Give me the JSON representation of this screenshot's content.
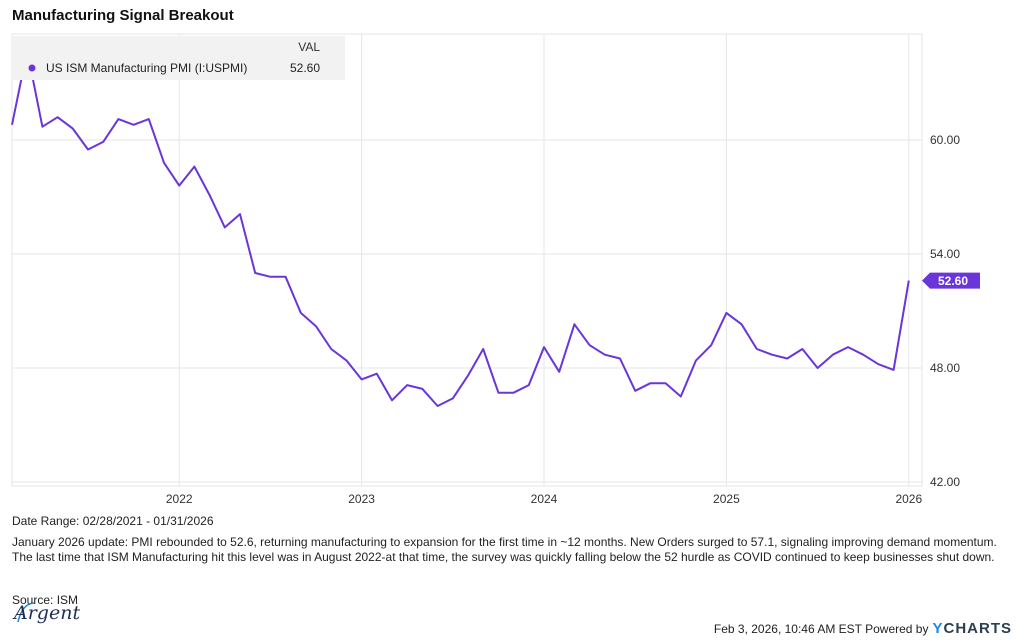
{
  "title": "Manufacturing Signal Breakout",
  "legend": {
    "header": "VAL",
    "series_label": "US ISM Manufacturing PMI (I:USPMI)",
    "series_value": "52.60"
  },
  "last_value_tag": "52.60",
  "date_range": "Date Range: 02/28/2021 - 01/31/2026",
  "note": "January 2026 update: PMI rebounded to 52.6, returning manufacturing to expansion for the first time in ~12 months. New Orders surged to 57.1, signaling improving demand momentum. The last time that ISM Manufacturing hit this level was in August 2022-at that time, the survey was quickly falling below the 52 hurdle as COVID continued to keep businesses shut down.",
  "source": "Source: ISM",
  "logo_text": "Argent",
  "footer": {
    "timestamp": "Feb 3, 2026, 10:46 AM EST Powered by",
    "brand_y": "Y",
    "brand_rest": "CHARTS"
  },
  "colors": {
    "series": "#6a35d9",
    "grid": "#e6e6e6",
    "legend_bg": "#f2f2f2"
  },
  "chart_data": {
    "type": "line",
    "title": "Manufacturing Signal Breakout",
    "xlabel": "",
    "ylabel": "",
    "ylim": [
      42,
      66
    ],
    "y_ticks": [
      "42.00",
      "48.00",
      "54.00",
      "60.00"
    ],
    "x_ticks": [
      "2022",
      "2023",
      "2024",
      "2025",
      "2026"
    ],
    "grid": true,
    "legend_position": "top-left",
    "series": [
      {
        "name": "US ISM Manufacturing PMI (I:USPMI)",
        "x": [
          "2021-02",
          "2021-03",
          "2021-04",
          "2021-05",
          "2021-06",
          "2021-07",
          "2021-08",
          "2021-09",
          "2021-10",
          "2021-11",
          "2021-12",
          "2022-01",
          "2022-02",
          "2022-03",
          "2022-04",
          "2022-05",
          "2022-06",
          "2022-07",
          "2022-08",
          "2022-09",
          "2022-10",
          "2022-11",
          "2022-12",
          "2023-01",
          "2023-02",
          "2023-03",
          "2023-04",
          "2023-05",
          "2023-06",
          "2023-07",
          "2023-08",
          "2023-09",
          "2023-10",
          "2023-11",
          "2023-12",
          "2024-01",
          "2024-02",
          "2024-03",
          "2024-04",
          "2024-05",
          "2024-06",
          "2024-07",
          "2024-08",
          "2024-09",
          "2024-10",
          "2024-11",
          "2024-12",
          "2025-01",
          "2025-02",
          "2025-03",
          "2025-04",
          "2025-05",
          "2025-06",
          "2025-07",
          "2025-08",
          "2025-09",
          "2025-10",
          "2025-11",
          "2025-12",
          "2026-01"
        ],
        "values": [
          60.8,
          64.7,
          60.7,
          61.2,
          60.6,
          59.5,
          59.9,
          61.1,
          60.8,
          61.1,
          58.8,
          57.6,
          58.6,
          57.1,
          55.4,
          56.1,
          53.0,
          52.8,
          52.8,
          50.9,
          50.2,
          49.0,
          48.4,
          47.4,
          47.7,
          46.3,
          47.1,
          46.9,
          46.0,
          46.4,
          47.6,
          49.0,
          46.7,
          46.7,
          47.1,
          49.1,
          47.8,
          50.3,
          49.2,
          48.7,
          48.5,
          46.8,
          47.2,
          47.2,
          46.5,
          48.4,
          49.2,
          50.9,
          50.3,
          49.0,
          48.7,
          48.5,
          49.0,
          48.0,
          48.7,
          49.1,
          48.7,
          48.2,
          47.9,
          52.6
        ]
      }
    ]
  }
}
